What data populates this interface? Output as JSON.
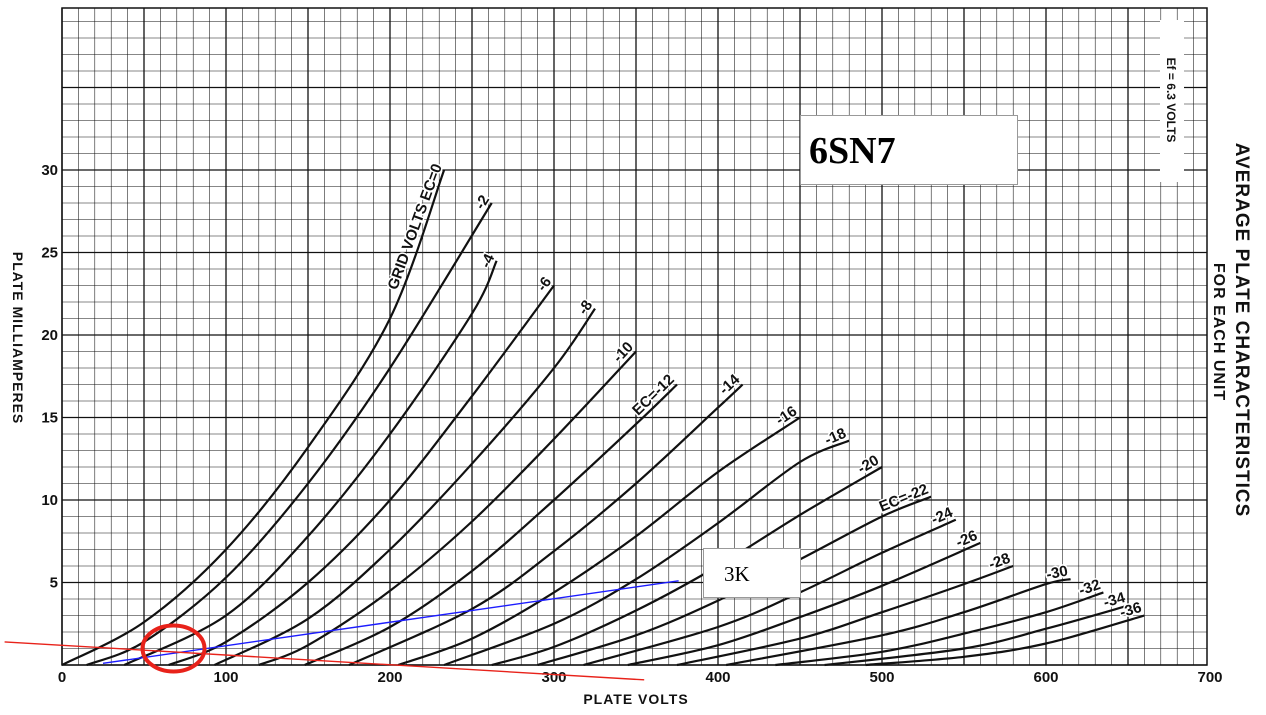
{
  "chart_data": {
    "type": "line",
    "title": "AVERAGE PLATE CHARACTERISTICS",
    "subtitle": "FOR EACH UNIT",
    "heater_note": "Ef = 6.3 VOLTS",
    "tube_label": "6SN7",
    "xlabel": "PLATE VOLTS",
    "ylabel": "PLATE MILLIAMPERES",
    "xlim": [
      0,
      700
    ],
    "ylim": [
      0,
      30
    ],
    "x_ticks": [
      "0",
      "100",
      "200",
      "300",
      "400",
      "500",
      "600",
      "700"
    ],
    "y_ticks": [
      "5",
      "10",
      "15",
      "20",
      "25",
      "30"
    ],
    "grid": true,
    "series": [
      {
        "name": "GRID VOLTS EC=0",
        "label": "GRID VOLTS EC=0",
        "points": [
          [
            0,
            0
          ],
          [
            50,
            2.6
          ],
          [
            100,
            7.0
          ],
          [
            150,
            13.2
          ],
          [
            200,
            21.0
          ],
          [
            233,
            30.0
          ]
        ]
      },
      {
        "name": "-2",
        "label": "-2",
        "points": [
          [
            15,
            0
          ],
          [
            50,
            1.4
          ],
          [
            100,
            5.3
          ],
          [
            150,
            11.0
          ],
          [
            200,
            18.0
          ],
          [
            262,
            28.0
          ]
        ]
      },
      {
        "name": "-4",
        "label": "-4",
        "points": [
          [
            38,
            0
          ],
          [
            100,
            3.0
          ],
          [
            150,
            7.8
          ],
          [
            200,
            14.0
          ],
          [
            250,
            21.3
          ],
          [
            265,
            24.5
          ]
        ]
      },
      {
        "name": "-6",
        "label": "-6",
        "points": [
          [
            65,
            0
          ],
          [
            100,
            1.4
          ],
          [
            150,
            5.0
          ],
          [
            200,
            10.0
          ],
          [
            250,
            16.3
          ],
          [
            300,
            23.0
          ]
        ]
      },
      {
        "name": "-8",
        "label": "-8",
        "points": [
          [
            93,
            0
          ],
          [
            150,
            2.8
          ],
          [
            200,
            7.0
          ],
          [
            250,
            12.2
          ],
          [
            300,
            18.0
          ],
          [
            325,
            21.6
          ]
        ]
      },
      {
        "name": "-10",
        "label": "-10",
        "points": [
          [
            120,
            0
          ],
          [
            150,
            1.2
          ],
          [
            200,
            4.5
          ],
          [
            250,
            8.7
          ],
          [
            300,
            13.7
          ],
          [
            350,
            19.0
          ]
        ]
      },
      {
        "name": "EC=-12",
        "label": "EC=-12",
        "points": [
          [
            148,
            0
          ],
          [
            200,
            2.3
          ],
          [
            250,
            5.7
          ],
          [
            300,
            10.0
          ],
          [
            350,
            14.6
          ],
          [
            375,
            17.0
          ]
        ]
      },
      {
        "name": "-14",
        "label": "-14",
        "points": [
          [
            175,
            0
          ],
          [
            250,
            3.4
          ],
          [
            300,
            6.9
          ],
          [
            350,
            11.0
          ],
          [
            400,
            15.6
          ],
          [
            415,
            17.0
          ]
        ]
      },
      {
        "name": "-16",
        "label": "-16",
        "points": [
          [
            205,
            0
          ],
          [
            250,
            1.6
          ],
          [
            300,
            4.4
          ],
          [
            350,
            7.8
          ],
          [
            400,
            11.7
          ],
          [
            450,
            15.0
          ]
        ]
      },
      {
        "name": "-18",
        "label": "-18",
        "points": [
          [
            233,
            0
          ],
          [
            300,
            2.5
          ],
          [
            350,
            5.2
          ],
          [
            400,
            8.6
          ],
          [
            450,
            12.3
          ],
          [
            480,
            13.6
          ]
        ]
      },
      {
        "name": "-20",
        "label": "-20",
        "points": [
          [
            262,
            0
          ],
          [
            300,
            1.1
          ],
          [
            350,
            3.3
          ],
          [
            400,
            6.0
          ],
          [
            450,
            9.1
          ],
          [
            500,
            12.0
          ]
        ]
      },
      {
        "name": "EC=-22",
        "label": "EC=-22",
        "points": [
          [
            290,
            0
          ],
          [
            350,
            1.8
          ],
          [
            400,
            3.9
          ],
          [
            450,
            6.4
          ],
          [
            500,
            9.0
          ],
          [
            530,
            10.2
          ]
        ]
      },
      {
        "name": "-24",
        "label": "-24",
        "points": [
          [
            318,
            0
          ],
          [
            400,
            2.3
          ],
          [
            450,
            4.4
          ],
          [
            500,
            6.8
          ],
          [
            545,
            8.8
          ]
        ]
      },
      {
        "name": "-26",
        "label": "-26",
        "points": [
          [
            345,
            0
          ],
          [
            400,
            1.2
          ],
          [
            450,
            2.9
          ],
          [
            500,
            4.8
          ],
          [
            560,
            7.4
          ]
        ]
      },
      {
        "name": "-28",
        "label": "-28",
        "points": [
          [
            375,
            0
          ],
          [
            450,
            1.6
          ],
          [
            500,
            3.2
          ],
          [
            550,
            4.9
          ],
          [
            580,
            6.0
          ]
        ]
      },
      {
        "name": "-30",
        "label": "-30",
        "points": [
          [
            405,
            0
          ],
          [
            500,
            1.8
          ],
          [
            550,
            3.2
          ],
          [
            600,
            4.9
          ],
          [
            615,
            5.2
          ]
        ]
      },
      {
        "name": "-32",
        "label": "-32",
        "points": [
          [
            435,
            0
          ],
          [
            500,
            0.8
          ],
          [
            550,
            1.9
          ],
          [
            600,
            3.2
          ],
          [
            635,
            4.4
          ]
        ]
      },
      {
        "name": "-34",
        "label": "-34",
        "points": [
          [
            465,
            0
          ],
          [
            550,
            1.0
          ],
          [
            600,
            2.2
          ],
          [
            650,
            3.6
          ]
        ]
      },
      {
        "name": "-36",
        "label": "-36",
        "points": [
          [
            490,
            0
          ],
          [
            550,
            0.5
          ],
          [
            600,
            1.3
          ],
          [
            660,
            3.0
          ]
        ]
      }
    ],
    "load_lines": [
      {
        "name": "3K",
        "color": "#1c1cff",
        "points": [
          [
            25,
            0.1
          ],
          [
            376,
            5.1
          ]
        ]
      },
      {
        "name": "",
        "color": "#e8221a",
        "points": [
          [
            -35,
            1.4
          ],
          [
            355,
            -0.9
          ]
        ]
      }
    ],
    "operating_point": {
      "x": 68,
      "y": 1.0,
      "color": "#e8221a"
    }
  }
}
